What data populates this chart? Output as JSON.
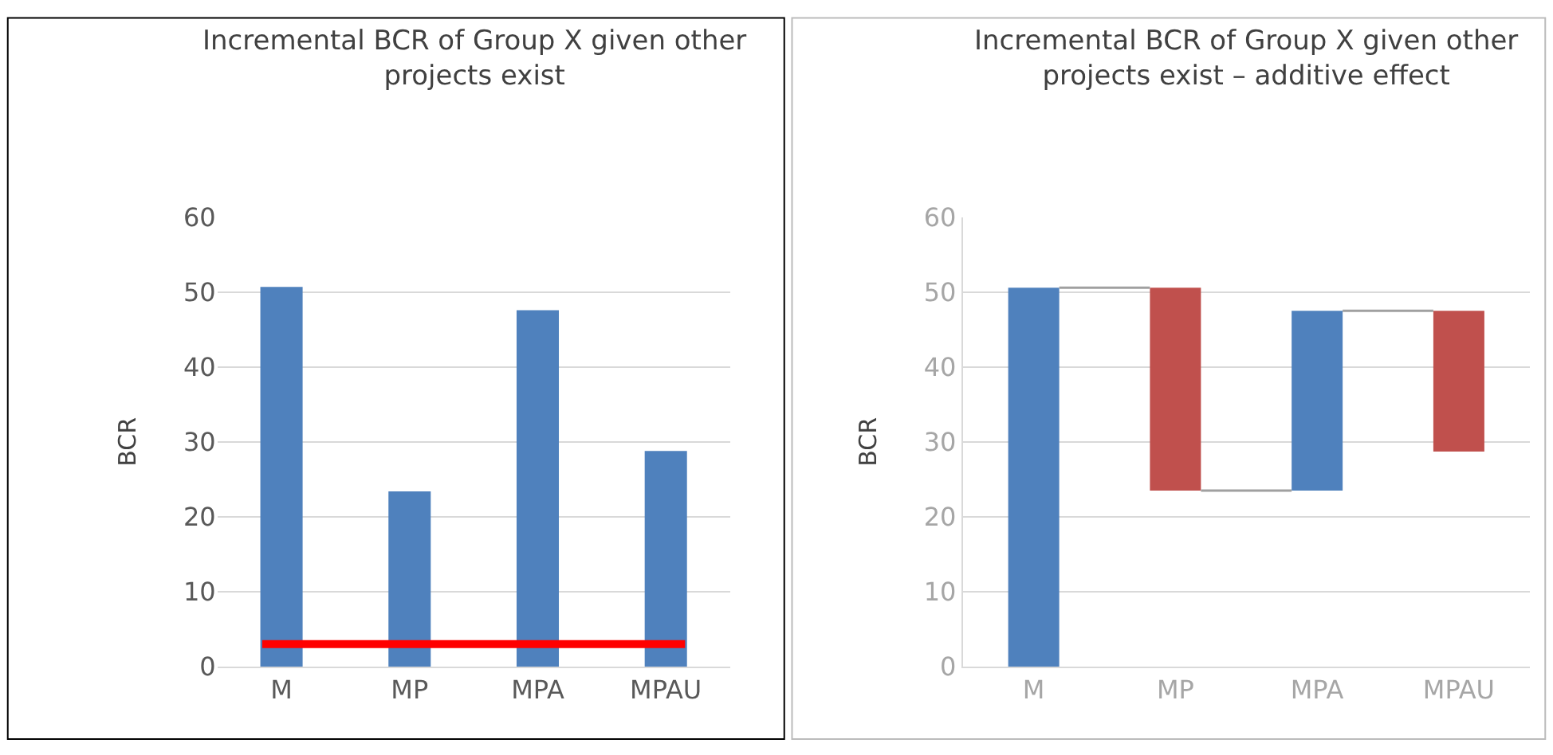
{
  "chart_data": [
    {
      "type": "bar",
      "title": "Incremental BCR of Group X given other projects exist",
      "ylabel": "BCR",
      "categories": [
        "M",
        "MP",
        "MPA",
        "MPAU"
      ],
      "values": [
        50.7,
        23.4,
        47.6,
        28.8
      ],
      "color": "#4f81bd",
      "ylim": [
        0,
        60
      ],
      "yticks": [
        0,
        10,
        20,
        30,
        40,
        50,
        60
      ],
      "grid": "y",
      "ref_lines": [
        {
          "axis": "y",
          "value": 3,
          "label": null,
          "color": "#ff0000",
          "line_style": "solid"
        }
      ]
    },
    {
      "type": "bar",
      "title": "Incremental BCR of Group X given other projects exist – additive effect",
      "ylabel": "BCR",
      "categories": [
        "M",
        "MP",
        "MPA",
        "MPAU"
      ],
      "base": [
        0,
        23.5,
        23.5,
        28.7
      ],
      "values": [
        50.6,
        27.1,
        24.0,
        18.8
      ],
      "colors": [
        "#4f81bd",
        "#c0504d",
        "#4f81bd",
        "#c0504d"
      ],
      "ylim": [
        0,
        60
      ],
      "yticks": [
        0,
        10,
        20,
        30,
        40,
        50,
        60
      ],
      "grid": "y",
      "ref_lines": [
        {
          "axis": "y",
          "value": 50.6,
          "label": null,
          "color": "#a0a0a0",
          "line_style": "solid"
        },
        {
          "axis": "y",
          "value": 23.5,
          "label": null,
          "color": "#a0a0a0",
          "line_style": "solid"
        },
        {
          "axis": "y",
          "value": 47.5,
          "label": null,
          "color": "#a0a0a0",
          "line_style": "solid"
        }
      ]
    }
  ]
}
